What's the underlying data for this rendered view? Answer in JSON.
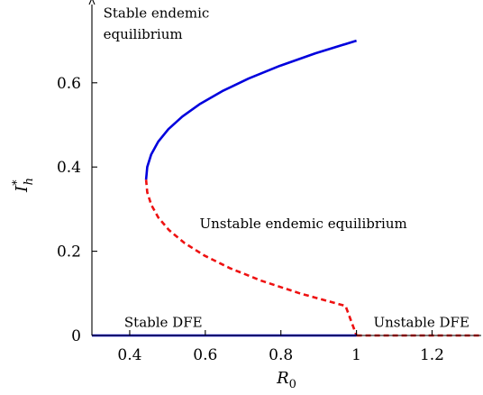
{
  "chart_data": {
    "type": "line",
    "xlabel": "R",
    "xlabel_sub": "0",
    "ylabel": "I",
    "ylabel_sup": "*",
    "ylabel_sub": "h",
    "xlim": [
      0.3,
      1.33
    ],
    "ylim": [
      0,
      0.78
    ],
    "x_ticks": [
      0.4,
      0.6,
      0.8,
      1,
      1.2
    ],
    "x_tick_labels": [
      "0.4",
      "0.6",
      "0.8",
      "1",
      "1.2"
    ],
    "y_ticks": [
      0,
      0.2,
      0.4,
      0.6
    ],
    "y_tick_labels": [
      "0",
      "0.2",
      "0.4",
      "0.6"
    ],
    "grid": false,
    "colors": {
      "stable": "#0000dd",
      "unstable": "#ee1111"
    },
    "series": [
      {
        "style": "solid",
        "color_key": "stable",
        "x": [
          0.4434,
          0.4464,
          0.4568,
          0.4753,
          0.5025,
          0.5394,
          0.5866,
          0.6448,
          0.7146,
          0.7966,
          0.8913,
          1.0
        ],
        "y": [
          0.37,
          0.4,
          0.43,
          0.46,
          0.49,
          0.52,
          0.55,
          0.58,
          0.61,
          0.64,
          0.67,
          0.7
        ]
      },
      {
        "style": "dashed",
        "color_key": "unstable",
        "x": [
          0.4434,
          0.4464,
          0.4571,
          0.4758,
          0.5044,
          0.5443,
          0.5972,
          0.6647,
          0.7484,
          0.85,
          0.9711,
          1.0
        ],
        "y": [
          0.37,
          0.34,
          0.31,
          0.28,
          0.25,
          0.22,
          0.19,
          0.16,
          0.13,
          0.1,
          0.07,
          0.0
        ]
      },
      {
        "style": "solid",
        "color_key": "stable",
        "x": [
          0.3,
          1.0
        ],
        "y": [
          0,
          0
        ]
      },
      {
        "style": "dashed",
        "color_key": "unstable",
        "x": [
          1.0,
          1.33
        ],
        "y": [
          0,
          0
        ]
      }
    ],
    "annotations": [
      {
        "text": "Stable endemic",
        "x": 0.33,
        "y": 0.755
      },
      {
        "text": "equilibrium",
        "x": 0.33,
        "y": 0.705
      },
      {
        "text": "Unstable endemic equilibrium",
        "x": 0.585,
        "y": 0.255
      },
      {
        "text": "Stable DFE",
        "x": 0.3855,
        "y": 0.02
      },
      {
        "text": "Unstable DFE",
        "x": 1.045,
        "y": 0.02
      }
    ]
  }
}
